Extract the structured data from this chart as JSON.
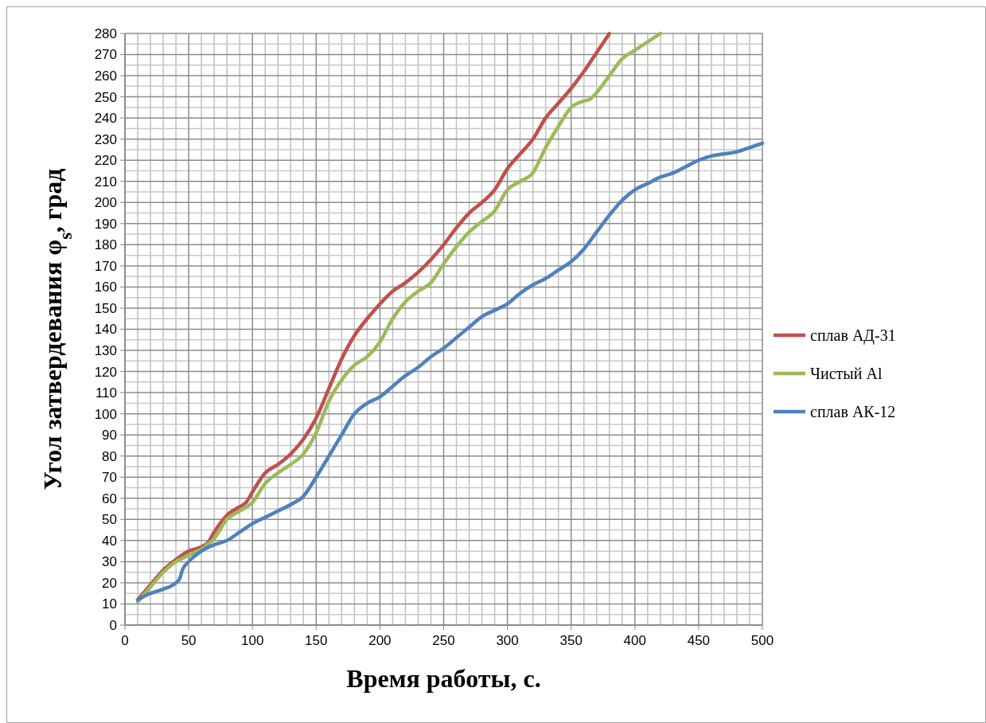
{
  "chart_data": {
    "type": "line",
    "xlabel": "Время работы, с.",
    "ylabel": "Угол затвердевания φ$_{s}$, град",
    "xlim": [
      0,
      500
    ],
    "xticks": [
      0,
      50,
      100,
      150,
      200,
      250,
      300,
      350,
      400,
      450,
      500
    ],
    "ylim": [
      0,
      280
    ],
    "yticks": [
      0,
      10,
      20,
      30,
      40,
      50,
      60,
      70,
      80,
      90,
      100,
      110,
      120,
      130,
      140,
      150,
      160,
      170,
      180,
      190,
      200,
      210,
      220,
      230,
      240,
      250,
      260,
      270,
      280
    ],
    "grid": true,
    "legend": "right",
    "marker": "none",
    "line_style": "solid",
    "series": [
      {
        "name": "сплав АД-31",
        "color": "#c0504d",
        "x": [
          10,
          20,
          30,
          40,
          50,
          60,
          65,
          70,
          80,
          90,
          95,
          100,
          110,
          120,
          130,
          140,
          150,
          160,
          170,
          180,
          190,
          200,
          210,
          220,
          230,
          240,
          250,
          260,
          270,
          280,
          290,
          300,
          310,
          320,
          330,
          340,
          350,
          360,
          370,
          380
        ],
        "values": [
          12,
          19,
          26,
          31,
          35,
          37,
          39,
          44,
          52,
          56,
          58,
          63,
          72,
          76,
          81,
          88,
          98,
          112,
          126,
          137,
          145,
          152,
          158,
          162,
          167,
          173,
          180,
          188,
          195,
          200,
          206,
          216,
          223,
          230,
          240,
          247,
          254,
          262,
          271,
          280
        ]
      },
      {
        "name": "Чистый Al",
        "color": "#9bbb59",
        "x": [
          10,
          20,
          30,
          40,
          50,
          60,
          70,
          80,
          90,
          100,
          110,
          120,
          130,
          140,
          150,
          160,
          170,
          180,
          190,
          200,
          210,
          220,
          230,
          240,
          250,
          260,
          270,
          280,
          290,
          300,
          310,
          320,
          330,
          340,
          350,
          360,
          365,
          370,
          380,
          390,
          400,
          410,
          420
        ],
        "values": [
          11,
          18,
          25,
          30,
          33,
          36,
          41,
          50,
          54,
          58,
          67,
          72,
          76,
          81,
          91,
          106,
          116,
          123,
          127,
          134,
          145,
          153,
          158,
          162,
          171,
          179,
          186,
          191,
          196,
          206,
          210,
          214,
          226,
          236,
          245,
          248,
          249,
          252,
          260,
          268,
          272,
          276,
          280
        ]
      },
      {
        "name": "сплав АК-12",
        "color": "#4f81bd",
        "x": [
          10,
          20,
          30,
          40,
          43,
          45,
          50,
          60,
          70,
          80,
          90,
          100,
          110,
          120,
          130,
          140,
          150,
          160,
          170,
          180,
          190,
          200,
          210,
          220,
          230,
          240,
          250,
          260,
          270,
          280,
          290,
          300,
          310,
          320,
          330,
          340,
          350,
          360,
          370,
          380,
          390,
          400,
          410,
          420,
          430,
          440,
          450,
          460,
          470,
          480,
          490,
          500
        ],
        "values": [
          12,
          15,
          17,
          20,
          22,
          26,
          30,
          35,
          38,
          40,
          44,
          48,
          51,
          54,
          57,
          61,
          70,
          80,
          90,
          100,
          105,
          108,
          113,
          118,
          122,
          127,
          131,
          136,
          141,
          146,
          149,
          152,
          157,
          161,
          164,
          168,
          172,
          178,
          186,
          194,
          201,
          206,
          209,
          212,
          214,
          217,
          220,
          222,
          223,
          224,
          226,
          228
        ]
      }
    ]
  }
}
